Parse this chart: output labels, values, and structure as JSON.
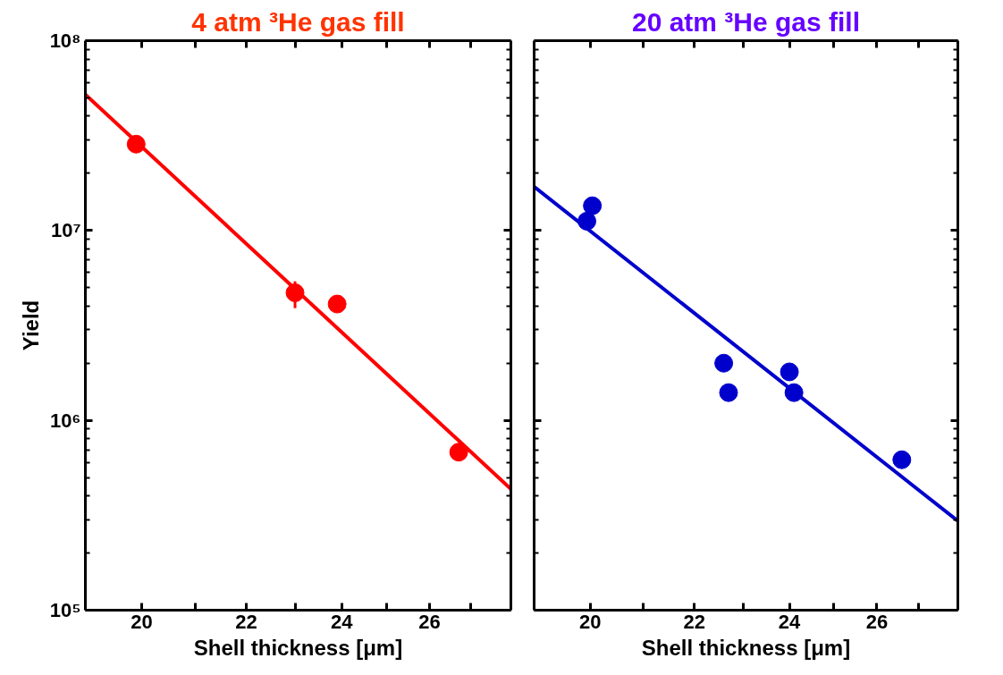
{
  "chart_data": [
    {
      "type": "scatter",
      "title": "4 atm ³He gas fill",
      "xlabel": "Shell thickness [μm]",
      "ylabel": "Yield",
      "log": "xy",
      "grid": false,
      "xlim": [
        19,
        28
      ],
      "xticks": [
        20,
        {
          "value": 21,
          "label": null
        },
        22,
        {
          "value": 23,
          "label": null
        },
        24,
        {
          "value": 25,
          "label": null
        },
        26,
        {
          "value": 27,
          "label": null
        }
      ],
      "ylim": [
        100000,
        100000000
      ],
      "yticks": [
        {
          "value": 100000,
          "label": "10⁵"
        },
        {
          "value": 1000000,
          "label": "10⁶"
        },
        {
          "value": 10000000,
          "label": "10⁷"
        },
        {
          "value": 100000000,
          "label": "10⁸"
        }
      ],
      "series": [
        {
          "marker": "circle",
          "color": "#ff0000",
          "x": [
            19.9,
            23.0,
            23.9,
            26.7
          ],
          "values": [
            28500000,
            4700000,
            4100000,
            680000
          ],
          "errors": [
            null,
            [
              3900000,
              5400000
            ],
            null,
            null
          ]
        },
        {
          "type": "line",
          "marker": "none",
          "color": "#ff0000",
          "x": [
            19,
            28
          ],
          "values": [
            52000000,
            435000
          ]
        }
      ]
    },
    {
      "type": "scatter",
      "title": "20 atm ³He gas fill",
      "xlabel": "Shell thickness [μm]",
      "log": "xy",
      "grid": false,
      "tick_labels": "x",
      "xlim": [
        19,
        28
      ],
      "xticks": [
        20,
        {
          "value": 21,
          "label": null
        },
        22,
        {
          "value": 23,
          "label": null
        },
        24,
        {
          "value": 25,
          "label": null
        },
        26,
        {
          "value": 27,
          "label": null
        }
      ],
      "ylim": [
        100000,
        100000000
      ],
      "yticks": [
        {
          "value": 100000,
          "label": null
        },
        {
          "value": 1000000,
          "label": null
        },
        {
          "value": 10000000,
          "label": null
        },
        {
          "value": 100000000,
          "label": null
        }
      ],
      "series": [
        {
          "marker": "circle",
          "color": "#0000cc",
          "x": [
            20.04,
            19.94,
            22.6,
            22.7,
            24.0,
            24.1,
            26.6
          ],
          "values": [
            13500000,
            11200000,
            2000000,
            1400000,
            1800000,
            1400000,
            620000
          ]
        },
        {
          "type": "line",
          "marker": "none",
          "color": "#0000cc",
          "x": [
            19,
            28
          ],
          "values": [
            17000000,
            295000
          ]
        }
      ]
    }
  ]
}
